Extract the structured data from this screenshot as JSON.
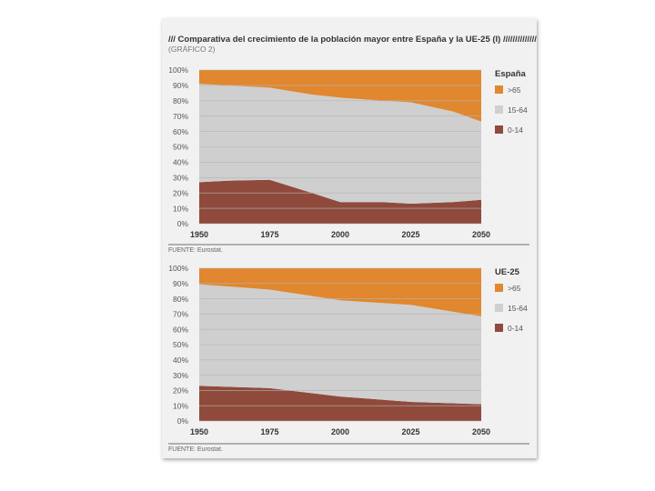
{
  "header": {
    "title": "/// Comparativa del crecimiento de la población mayor entre España y la UE-25 (I) //////////////////",
    "subtitle": "(GRÁFICO 2)"
  },
  "colors": {
    "over65": "#e0872f",
    "mid": "#cfcfcf",
    "young": "#8f4a3c",
    "grid": "#b5b5b5"
  },
  "chart_data": [
    {
      "type": "area",
      "title": "España",
      "x": [
        1950,
        1960,
        1975,
        1990,
        2000,
        2015,
        2025,
        2040,
        2050
      ],
      "x_ticks": [
        1950,
        1975,
        2000,
        2025,
        2050
      ],
      "y_ticks": [
        "0%",
        "10%",
        "20%",
        "30%",
        "40%",
        "50%",
        "60%",
        "70%",
        "80%",
        "90%",
        "100%"
      ],
      "ylim": [
        0,
        100
      ],
      "series": [
        {
          "name": "0-14",
          "values": [
            27,
            28,
            28.5,
            20,
            14,
            14,
            13,
            14,
            15.5
          ]
        },
        {
          "name": "15-64",
          "values": [
            64,
            62,
            60,
            64,
            68,
            66,
            66,
            59,
            51
          ]
        },
        {
          "name": ">65",
          "values": [
            9,
            10,
            11.5,
            16,
            18,
            20,
            21,
            27,
            33.5
          ]
        }
      ],
      "legend": [
        "0-14",
        "15-64",
        ">65"
      ],
      "source": "FUENTE: Eurostat."
    },
    {
      "type": "area",
      "title": "UE-25",
      "x": [
        1950,
        1975,
        2000,
        2025,
        2050
      ],
      "x_ticks": [
        1950,
        1975,
        2000,
        2025,
        2050
      ],
      "y_ticks": [
        "0%",
        "10%",
        "20%",
        "30%",
        "40%",
        "50%",
        "60%",
        "70%",
        "80%",
        "90%",
        "100%"
      ],
      "ylim": [
        0,
        100
      ],
      "series": [
        {
          "name": "0-14",
          "values": [
            23,
            21.5,
            16,
            12.5,
            11
          ]
        },
        {
          "name": "15-64",
          "values": [
            66.5,
            64.5,
            63,
            63.5,
            57.5
          ]
        },
        {
          "name": ">65",
          "values": [
            10.5,
            14,
            21,
            24,
            31.5
          ]
        }
      ],
      "legend": [
        "0-14",
        "15-64",
        ">65"
      ],
      "source": "FUENTE: Eurostat."
    }
  ]
}
